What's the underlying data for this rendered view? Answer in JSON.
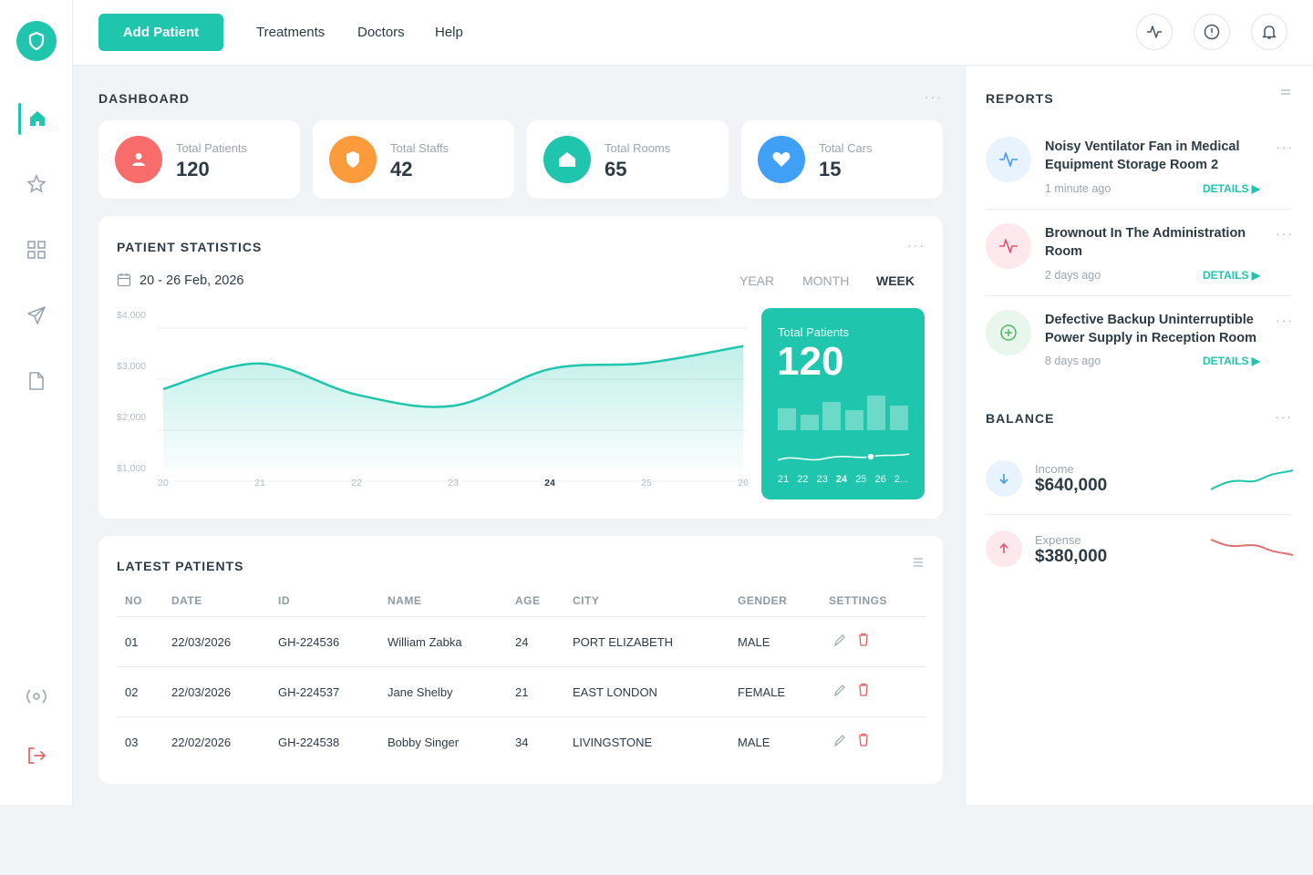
{
  "topbar": {
    "button": "Add Patient",
    "nav": [
      "Treatments",
      "Doctors",
      "Help"
    ]
  },
  "dashboard": {
    "title": "DASHBOARD",
    "cards": [
      {
        "label": "Total Patients",
        "value": 120
      },
      {
        "label": "Total Staffs",
        "value": 42
      },
      {
        "label": "Total Rooms",
        "value": 65
      },
      {
        "label": "Total Cars",
        "value": 15
      }
    ]
  },
  "patient_statistics": {
    "title": "PATIENT STATISTICS",
    "date_range": "20 - 26 Feb, 2026",
    "periods": [
      "YEAR",
      "MONTH",
      "WEEK"
    ],
    "chart_data": {
      "type": "line",
      "categories": [
        "20",
        "21",
        "22",
        "23",
        "24",
        "25",
        "26"
      ],
      "values": [
        2540,
        3040,
        2430,
        2210,
        2930,
        3050,
        3380
      ],
      "color": "#1fc5ad",
      "ylim": [
        1000,
        4000
      ],
      "yticks": [
        {
          "value": 1000,
          "label": "$1,000"
        },
        {
          "value": 2000,
          "label": "$2,000"
        },
        {
          "value": 3000,
          "label": "$3,000"
        },
        {
          "value": 4000,
          "label": "$4,000"
        }
      ]
    },
    "highlight": {
      "label": "Total Patients",
      "value": 120,
      "days": [
        "21",
        "22",
        "23",
        "24",
        "25",
        "26",
        "2..."
      ]
    }
  },
  "latest_patients": {
    "title": "LATEST PATIENTS",
    "columns": [
      "NO",
      "DATE",
      "ID",
      "NAME",
      "AGE",
      "CITY",
      "GENDER",
      "SETTINGS"
    ],
    "rows": [
      [
        "01",
        "22/03/2026",
        "GH-224536",
        "William Zabka",
        24,
        "PORT ELIZABETH",
        "MALE"
      ],
      [
        "02",
        "22/03/2026",
        "GH-224537",
        "Jane Shelby",
        21,
        "EAST LONDON",
        "FEMALE"
      ],
      [
        "03",
        "22/02/2026",
        "GH-224538",
        "Bobby Singer",
        34,
        "LIVINGSTONE",
        "MALE"
      ]
    ]
  },
  "reports": {
    "title": "REPORTS",
    "items": [
      {
        "title": "Noisy Ventilator Fan in Medical Equipment Storage Room 2",
        "time": "1 minute ago",
        "link": "DETAILS ▶"
      },
      {
        "title": "Brownout In The Administration Room",
        "time": "2 days ago",
        "link": "DETAILS ▶"
      },
      {
        "title": "Defective Backup Uninterruptible Power Supply in Reception Room",
        "time": "8 days ago",
        "link": "DETAILS ▶"
      }
    ]
  },
  "balance": {
    "title": "BALANCE",
    "items": [
      {
        "label": "Income",
        "value": "$640,000"
      },
      {
        "label": "Expense",
        "value": "$380,000"
      }
    ]
  }
}
